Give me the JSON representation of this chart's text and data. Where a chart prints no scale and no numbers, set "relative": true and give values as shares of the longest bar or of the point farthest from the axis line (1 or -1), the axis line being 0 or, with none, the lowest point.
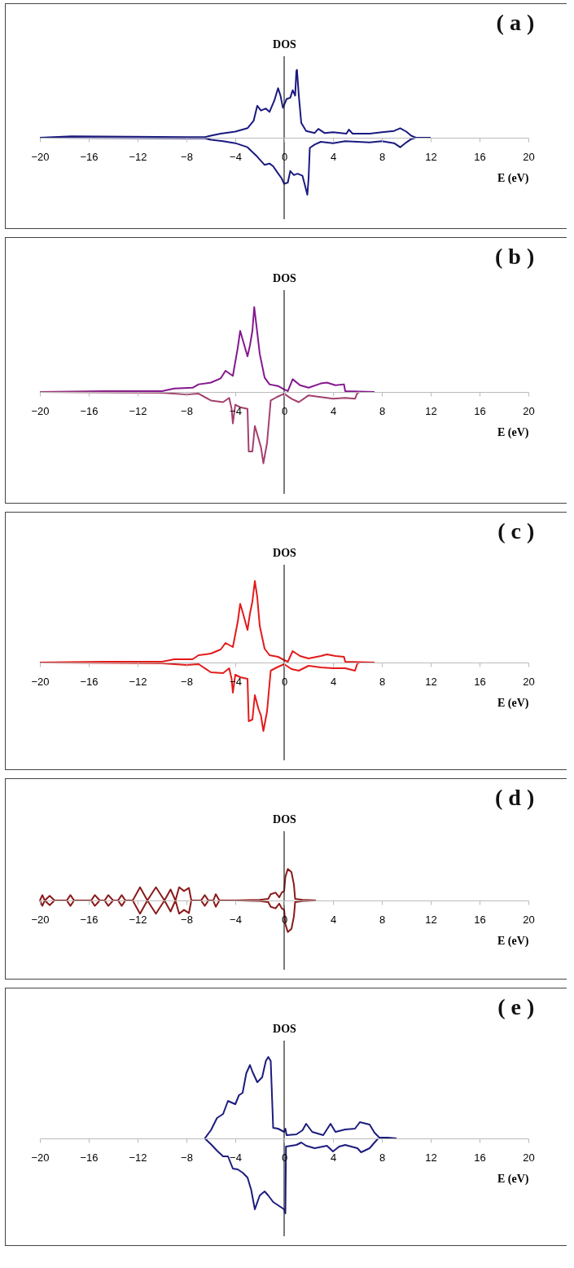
{
  "chart_data": [
    {
      "type": "line",
      "title": "( a )",
      "ylabel": "DOS",
      "xlabel": "E (eV)",
      "relative": true,
      "xlim": [
        -20,
        20
      ],
      "xticks": [
        -20,
        -16,
        -12,
        -8,
        -4,
        0,
        4,
        8,
        12,
        16,
        20
      ],
      "line_style": "solid",
      "ref_lines": [
        {
          "axis": "x",
          "value": 0
        }
      ],
      "series": [
        {
          "color": "#1a1a80",
          "x": [
            -20,
            -17.4,
            -8,
            -6.5,
            -6,
            -5.2,
            -4,
            -3,
            -2.5,
            -2.2,
            -1.9,
            -1.5,
            -1.2,
            -0.8,
            -0.5,
            -0.3,
            -0.1,
            0.2,
            0.5,
            0.7,
            0.9,
            1.0,
            1.05,
            1.2,
            1.4,
            1.8,
            2.5,
            2.8,
            3.3,
            4,
            5.1,
            5.3,
            5.6,
            7,
            8,
            9,
            9.5,
            10,
            10.4,
            10.8,
            12
          ],
          "values": [
            0,
            0.02,
            0.01,
            0.01,
            0.03,
            0.06,
            0.09,
            0.14,
            0.25,
            0.47,
            0.4,
            0.43,
            0.38,
            0.55,
            0.73,
            0.62,
            0.44,
            0.57,
            0.59,
            0.7,
            0.62,
            0.98,
            1,
            0.62,
            0.22,
            0.1,
            0.07,
            0.13,
            0.07,
            0.08,
            0.06,
            0.12,
            0.06,
            0.06,
            0.08,
            0.1,
            0.14,
            0.09,
            0.03,
            0,
            0
          ]
        },
        {
          "color": "#1a1a80",
          "x": [
            -20,
            -8,
            -6.5,
            -6,
            -5,
            -4,
            -3,
            -2.2,
            -1.6,
            -1.2,
            -0.9,
            -0.6,
            -0.2,
            0,
            0.3,
            0.5,
            0.8,
            1.1,
            1.5,
            1.7,
            1.9,
            2.0,
            2.1,
            2.5,
            3,
            4,
            5,
            6,
            7,
            8,
            9,
            9.5,
            10,
            10.4,
            10.8,
            12
          ],
          "values": [
            0,
            -0.01,
            -0.01,
            -0.03,
            -0.05,
            -0.08,
            -0.14,
            -0.28,
            -0.4,
            -0.38,
            -0.42,
            -0.5,
            -0.6,
            -0.68,
            -0.66,
            -0.49,
            -0.55,
            -0.53,
            -0.56,
            -0.7,
            -0.84,
            -0.6,
            -0.15,
            -0.1,
            -0.06,
            -0.08,
            -0.05,
            -0.06,
            -0.07,
            -0.05,
            -0.08,
            -0.14,
            -0.07,
            -0.02,
            0,
            0
          ]
        }
      ]
    },
    {
      "type": "line",
      "title": "( b )",
      "ylabel": "DOS",
      "xlabel": "E (eV)",
      "relative": true,
      "xlim": [
        -20,
        20
      ],
      "xticks": [
        -20,
        -16,
        -12,
        -8,
        -4,
        0,
        4,
        8,
        12,
        16,
        20
      ],
      "line_style": "solid",
      "ref_lines": [
        {
          "axis": "x",
          "value": 0
        }
      ],
      "series": [
        {
          "color": "#85188f",
          "x": [
            -20,
            -14.8,
            -10,
            -9,
            -7.5,
            -7,
            -6,
            -5.2,
            -4.8,
            -4.2,
            -3.8,
            -3.6,
            -3.4,
            -3.0,
            -2.8,
            -2.6,
            -2.45,
            -2.3,
            -2.0,
            -1.6,
            -1.2,
            -0.5,
            0,
            0.3,
            0.7,
            1.3,
            2,
            3,
            3.5,
            4.2,
            4.9,
            5.0,
            7.4
          ],
          "values": [
            0,
            0.01,
            0.01,
            0.04,
            0.05,
            0.09,
            0.11,
            0.16,
            0.25,
            0.19,
            0.52,
            0.72,
            0.62,
            0.42,
            0.55,
            0.72,
            1,
            0.82,
            0.45,
            0.17,
            0.09,
            0.07,
            0.03,
            0.01,
            0.15,
            0.08,
            0.05,
            0.1,
            0.11,
            0.08,
            0.09,
            0.01,
            0
          ]
        },
        {
          "color": "#a3406f",
          "x": [
            -20,
            -10,
            -8,
            -7,
            -6,
            -5,
            -4.5,
            -4.3,
            -4.2,
            -4.0,
            -3.6,
            -3.0,
            -2.9,
            -2.6,
            -2.4,
            -2.1,
            -1.9,
            -1.7,
            -1.4,
            -1.1,
            -0.6,
            0,
            0.6,
            1.2,
            2,
            3,
            4,
            5,
            5.8,
            6,
            6.2
          ],
          "values": [
            0,
            -0.01,
            -0.03,
            -0.02,
            -0.1,
            -0.12,
            -0.07,
            -0.2,
            -0.37,
            -0.15,
            -0.18,
            -0.2,
            -0.7,
            -0.7,
            -0.4,
            -0.55,
            -0.65,
            -0.84,
            -0.6,
            -0.1,
            -0.06,
            -0.02,
            -0.08,
            -0.12,
            -0.04,
            -0.06,
            -0.08,
            -0.07,
            -0.08,
            -0.01,
            0
          ]
        }
      ]
    },
    {
      "type": "line",
      "title": "( c )",
      "ylabel": "DOS",
      "xlabel": "E (eV)",
      "relative": true,
      "xlim": [
        -20,
        20
      ],
      "xticks": [
        -20,
        -16,
        -12,
        -8,
        -4,
        0,
        4,
        8,
        12,
        16,
        20
      ],
      "line_style": "solid",
      "ref_lines": [
        {
          "axis": "x",
          "value": 0
        }
      ],
      "series": [
        {
          "color": "#e31b1b",
          "x": [
            -20,
            -14.8,
            -10,
            -9,
            -7.5,
            -7,
            -6,
            -5.2,
            -4.8,
            -4.2,
            -3.8,
            -3.6,
            -3.4,
            -3.0,
            -2.8,
            -2.6,
            -2.4,
            -2.2,
            -2.0,
            -1.6,
            -1.2,
            -0.5,
            0,
            0.3,
            0.7,
            1.3,
            2,
            3,
            3.5,
            4.2,
            4.9,
            5.0,
            7.4
          ],
          "values": [
            0,
            0.01,
            0.01,
            0.04,
            0.04,
            0.09,
            0.11,
            0.16,
            0.24,
            0.19,
            0.5,
            0.72,
            0.62,
            0.4,
            0.6,
            0.75,
            1,
            0.8,
            0.45,
            0.17,
            0.09,
            0.07,
            0.03,
            0.01,
            0.14,
            0.08,
            0.05,
            0.08,
            0.1,
            0.08,
            0.07,
            0.01,
            0
          ]
        },
        {
          "color": "#e31b1b",
          "x": [
            -20,
            -10,
            -8,
            -7,
            -6,
            -5,
            -4.5,
            -4.3,
            -4.2,
            -4.0,
            -3.6,
            -3.0,
            -2.9,
            -2.6,
            -2.4,
            -2.1,
            -1.9,
            -1.7,
            -1.4,
            -1.1,
            -0.6,
            0,
            0.6,
            1.2,
            2,
            3,
            4,
            5,
            5.8,
            6,
            6.2
          ],
          "values": [
            0,
            -0.01,
            -0.03,
            -0.02,
            -0.12,
            -0.13,
            -0.07,
            -0.2,
            -0.37,
            -0.15,
            -0.18,
            -0.2,
            -0.72,
            -0.7,
            -0.4,
            -0.57,
            -0.65,
            -0.84,
            -0.6,
            -0.1,
            -0.06,
            -0.02,
            -0.08,
            -0.1,
            -0.04,
            -0.06,
            -0.07,
            -0.07,
            -0.1,
            -0.01,
            0
          ]
        }
      ]
    },
    {
      "type": "line",
      "title": "( d )",
      "ylabel": "DOS",
      "xlabel": "E (eV)",
      "relative": true,
      "xlim": [
        -20,
        20
      ],
      "xticks": [
        -20,
        -16,
        -12,
        -8,
        -4,
        0,
        4,
        8,
        12,
        16,
        20
      ],
      "line_style": "solid",
      "ref_lines": [
        {
          "axis": "x",
          "value": 0
        }
      ],
      "series": [
        {
          "color": "#8b1a1a",
          "x": [
            -20,
            -19.8,
            -19.6,
            -19.2,
            -18.8,
            -17.8,
            -17.5,
            -17.2,
            -15.8,
            -15.5,
            -15.1,
            -14.7,
            -14.4,
            -14.0,
            -13.6,
            -13.3,
            -13.0,
            -12.4,
            -11.8,
            -11.2,
            -10.5,
            -9.8,
            -9.3,
            -8.9,
            -8.6,
            -8.2,
            -7.8,
            -7.6,
            -6.8,
            -6.5,
            -6.2,
            -5.8,
            -5.6,
            -5.3,
            -4,
            -2,
            -1.3,
            -1.1,
            -0.7,
            -0.4,
            -0.2,
            0,
            0.1,
            0.3,
            0.6,
            0.8,
            0.9,
            1.5,
            2.6
          ],
          "values": [
            0,
            0.17,
            0,
            0.15,
            0,
            0,
            0.17,
            0,
            0,
            0.17,
            0,
            0,
            0.17,
            0,
            0,
            0.17,
            0,
            0,
            0.42,
            0,
            0.42,
            0,
            0.35,
            0,
            0.42,
            0.3,
            0.4,
            0,
            0,
            0.17,
            0,
            0,
            0.2,
            0,
            0,
            0.02,
            0.05,
            0.2,
            0.25,
            0.1,
            0.25,
            0.3,
            0.75,
            1,
            0.9,
            0.5,
            0.05,
            0.02,
            0
          ]
        },
        {
          "color": "#8b1a1a",
          "x": [
            -20,
            -19.8,
            -19.6,
            -19.2,
            -18.8,
            -17.8,
            -17.5,
            -17.2,
            -15.8,
            -15.5,
            -15.1,
            -14.7,
            -14.4,
            -14.0,
            -13.6,
            -13.3,
            -13.0,
            -12.4,
            -11.8,
            -11.2,
            -10.5,
            -9.8,
            -9.3,
            -8.9,
            -8.6,
            -8.2,
            -7.8,
            -7.6,
            -6.8,
            -6.5,
            -6.2,
            -5.8,
            -5.6,
            -5.3,
            -4,
            -2,
            -1.3,
            -1.1,
            -0.7,
            -0.4,
            -0.2,
            0,
            0.1,
            0.3,
            0.6,
            0.8,
            0.9,
            1.5,
            2.6
          ],
          "values": [
            0,
            -0.17,
            0,
            -0.15,
            0,
            0,
            -0.17,
            0,
            0,
            -0.17,
            0,
            0,
            -0.17,
            0,
            0,
            -0.17,
            0,
            0,
            -0.42,
            0,
            -0.42,
            0,
            -0.35,
            0,
            -0.42,
            -0.3,
            -0.4,
            0,
            0,
            -0.17,
            0,
            0,
            -0.2,
            0,
            0,
            -0.02,
            -0.05,
            -0.2,
            -0.25,
            -0.1,
            -0.25,
            -0.3,
            -0.75,
            -1,
            -0.9,
            -0.5,
            -0.05,
            -0.02,
            0
          ]
        }
      ]
    },
    {
      "type": "line",
      "title": "( e )",
      "ylabel": "DOS",
      "xlabel": "E (eV)",
      "relative": true,
      "xlim": [
        -20,
        20
      ],
      "xticks": [
        -20,
        -16,
        -12,
        -8,
        -4,
        0,
        4,
        8,
        12,
        16,
        20
      ],
      "line_style": "solid",
      "ref_lines": [
        {
          "axis": "x",
          "value": 0
        }
      ],
      "series": [
        {
          "color": "#1c1c7e",
          "x": [
            -6.5,
            -6.0,
            -5.5,
            -5.0,
            -4.6,
            -4.3,
            -4.0,
            -3.7,
            -3.4,
            -3.1,
            -2.8,
            -2.6,
            -2.2,
            -1.8,
            -1.5,
            -1.3,
            -1.1,
            -0.9,
            -0.5,
            0,
            0.1,
            0.2,
            1,
            1.5,
            1.8,
            2.3,
            3.2,
            3.8,
            4.2,
            5,
            5.8,
            6.2,
            7,
            7.4,
            7.8,
            8.5,
            9.2
          ],
          "values": [
            0,
            0.1,
            0.25,
            0.3,
            0.46,
            0.44,
            0.42,
            0.53,
            0.56,
            0.8,
            0.9,
            0.82,
            0.69,
            0.75,
            0.95,
            1,
            0.95,
            0.13,
            0.12,
            0.08,
            0.12,
            0.04,
            0.05,
            0.1,
            0.18,
            0.08,
            0.04,
            0.18,
            0.08,
            0.11,
            0.12,
            0.2,
            0.17,
            0.07,
            0.01,
            0.01,
            0
          ]
        },
        {
          "color": "#1c1c7e",
          "x": [
            -6.5,
            -6,
            -5.5,
            -5,
            -4.6,
            -4.2,
            -3.8,
            -3.4,
            -3.0,
            -2.7,
            -2.4,
            -2.0,
            -1.6,
            -1.3,
            -0.9,
            -0.4,
            0,
            0.1,
            0.15,
            1,
            1.4,
            1.8,
            2.5,
            3.5,
            4,
            4.5,
            5,
            6,
            6.3,
            7,
            7.4,
            7.7
          ],
          "values": [
            0,
            -0.07,
            -0.15,
            -0.22,
            -0.22,
            -0.37,
            -0.38,
            -0.42,
            -0.48,
            -0.63,
            -0.87,
            -0.7,
            -0.65,
            -0.7,
            -0.78,
            -0.83,
            -0.87,
            -0.92,
            -0.1,
            -0.08,
            -0.05,
            -0.09,
            -0.12,
            -0.09,
            -0.16,
            -0.1,
            -0.08,
            -0.12,
            -0.17,
            -0.12,
            -0.05,
            0
          ]
        }
      ]
    }
  ]
}
